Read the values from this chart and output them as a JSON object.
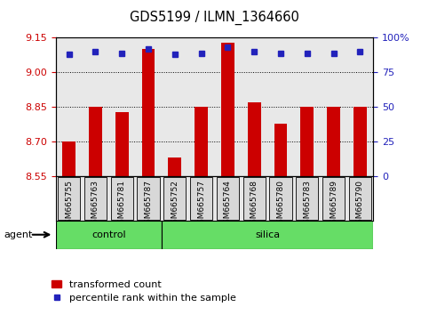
{
  "title": "GDS5199 / ILMN_1364660",
  "samples": [
    "GSM665755",
    "GSM665763",
    "GSM665781",
    "GSM665787",
    "GSM665752",
    "GSM665757",
    "GSM665764",
    "GSM665768",
    "GSM665780",
    "GSM665783",
    "GSM665789",
    "GSM665790"
  ],
  "transformed_count": [
    8.7,
    8.85,
    8.83,
    9.1,
    8.63,
    8.85,
    9.13,
    8.87,
    8.78,
    8.85,
    8.85,
    8.85
  ],
  "percentile_rank": [
    88,
    90,
    89,
    92,
    88,
    89,
    93,
    90,
    89,
    89,
    89,
    90
  ],
  "control_count": 4,
  "silica_count": 8,
  "group_names": [
    "control",
    "silica"
  ],
  "group_color": "#66DD66",
  "ylim_left": [
    8.55,
    9.15
  ],
  "yticks_left": [
    8.55,
    8.7,
    8.85,
    9.0,
    9.15
  ],
  "yticks_right": [
    0,
    25,
    50,
    75,
    100
  ],
  "bar_color": "#CC0000",
  "dot_color": "#2222BB",
  "bar_width": 0.5,
  "plot_bg_color": "#E8E8E8",
  "agent_label": "agent",
  "legend_items": [
    "transformed count",
    "percentile rank within the sample"
  ],
  "tick_label_color_left": "#CC0000",
  "tick_label_color_right": "#2222BB"
}
